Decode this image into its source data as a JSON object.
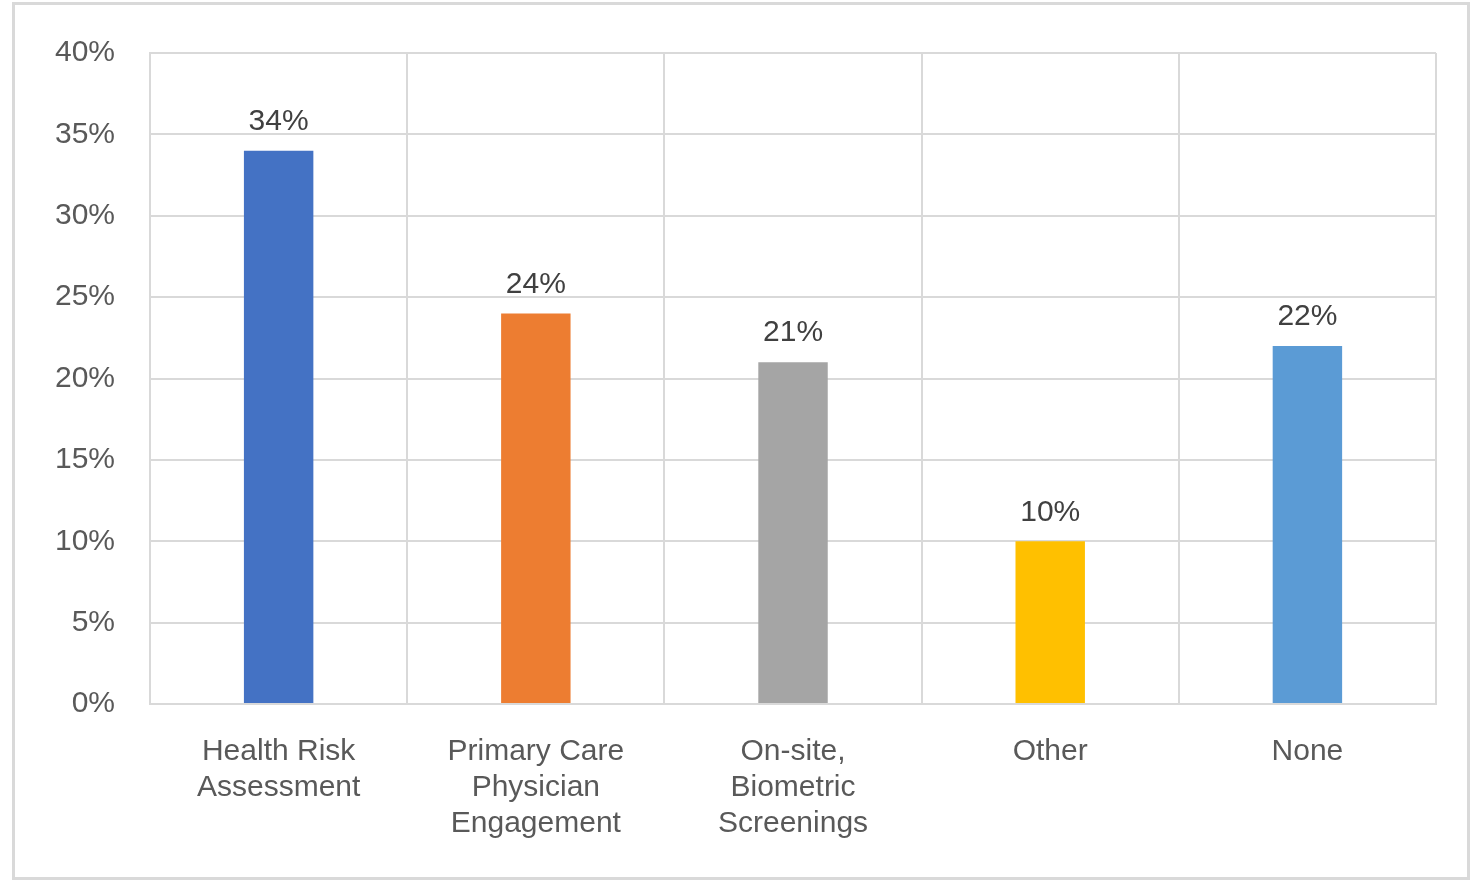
{
  "chart_data": {
    "type": "bar",
    "categories": [
      "Health Risk Assessment",
      "Primary Care Physician Engagement",
      "On-site, Biometric Screenings",
      "Other",
      "None"
    ],
    "values": [
      34,
      24,
      21,
      10,
      22
    ],
    "colors": [
      "#4472c4",
      "#ed7d31",
      "#a5a5a5",
      "#ffc000",
      "#5b9bd5"
    ],
    "value_labels": [
      "34%",
      "24%",
      "21%",
      "10%",
      "22%"
    ],
    "ylim": [
      0,
      40
    ],
    "yticks": [
      {
        "value": 0,
        "label": "0%"
      },
      {
        "value": 5,
        "label": "5%"
      },
      {
        "value": 10,
        "label": "10%"
      },
      {
        "value": 15,
        "label": "15%"
      },
      {
        "value": 20,
        "label": "20%"
      },
      {
        "value": 25,
        "label": "25%"
      },
      {
        "value": 30,
        "label": "30%"
      },
      {
        "value": 35,
        "label": "35%"
      },
      {
        "value": 40,
        "label": "40%"
      }
    ],
    "grid": true,
    "legend": false
  }
}
